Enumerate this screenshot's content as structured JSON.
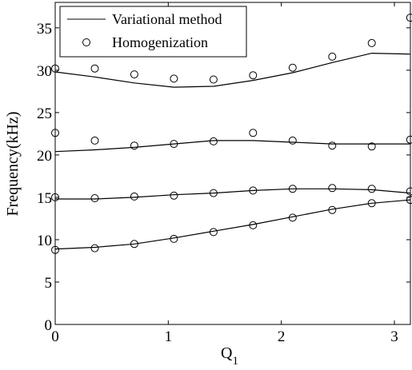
{
  "chart_data": {
    "type": "line",
    "xlabel": "Q",
    "xlabel_subscript": "1",
    "ylabel": "Frequency(kHz)",
    "xlim": [
      0,
      3.1416
    ],
    "ylim": [
      0,
      38
    ],
    "xticks": [
      0,
      1,
      2,
      3
    ],
    "yticks": [
      0,
      5,
      10,
      15,
      20,
      25,
      30,
      35
    ],
    "x_tick_labels": [
      "0",
      "1",
      "2",
      "3"
    ],
    "y_tick_labels": [
      "0",
      "5",
      "10",
      "15",
      "20",
      "25",
      "30",
      "35"
    ],
    "grid": false,
    "legend_position": "top-left",
    "legend": [
      "Variational method",
      "Homogenization"
    ],
    "series": [
      {
        "name": "Variational method",
        "style": "line",
        "curves": [
          {
            "x": [
              0,
              0.35,
              0.7,
              1.05,
              1.4,
              1.75,
              2.1,
              2.45,
              2.8,
              3.14
            ],
            "y": [
              8.9,
              9.1,
              9.5,
              10.2,
              11.0,
              11.8,
              12.7,
              13.6,
              14.3,
              14.7
            ]
          },
          {
            "x": [
              0,
              0.35,
              0.7,
              1.05,
              1.4,
              1.75,
              2.1,
              2.45,
              2.8,
              3.14
            ],
            "y": [
              14.8,
              14.8,
              15.0,
              15.3,
              15.5,
              15.8,
              16.0,
              16.0,
              15.9,
              15.5
            ]
          },
          {
            "x": [
              0,
              0.35,
              0.7,
              1.05,
              1.4,
              1.75,
              2.1,
              2.45,
              2.8,
              3.14
            ],
            "y": [
              20.4,
              20.6,
              20.9,
              21.3,
              21.7,
              21.7,
              21.5,
              21.3,
              21.3,
              21.3
            ]
          },
          {
            "x": [
              0,
              0.35,
              0.7,
              1.05,
              1.4,
              1.75,
              2.1,
              2.45,
              2.8,
              3.14
            ],
            "y": [
              29.8,
              29.2,
              28.5,
              28.0,
              28.1,
              28.8,
              29.7,
              30.9,
              32.0,
              31.9
            ]
          }
        ]
      },
      {
        "name": "Homogenization",
        "style": "marker-circle",
        "curves": [
          {
            "x": [
              0,
              0.35,
              0.7,
              1.05,
              1.4,
              1.75,
              2.1,
              2.45,
              2.8,
              3.14
            ],
            "y": [
              8.8,
              9.0,
              9.5,
              10.1,
              10.9,
              11.7,
              12.6,
              13.5,
              14.3,
              14.7
            ]
          },
          {
            "x": [
              0,
              0.35,
              0.7,
              1.05,
              1.4,
              1.75,
              2.1,
              2.45,
              2.8,
              3.14
            ],
            "y": [
              15.0,
              14.9,
              15.1,
              15.2,
              15.5,
              15.8,
              16.0,
              16.1,
              16.0,
              15.7
            ]
          },
          {
            "x": [
              0,
              0.35,
              0.7,
              1.05,
              1.4,
              1.75,
              2.1,
              2.45,
              2.8,
              3.14
            ],
            "y": [
              22.6,
              21.7,
              21.1,
              21.3,
              21.6,
              22.6,
              21.7,
              21.1,
              21.0,
              21.8
            ]
          },
          {
            "x": [
              0,
              0.35,
              0.7,
              1.05,
              1.4,
              1.75,
              2.1,
              2.45,
              2.8,
              3.14
            ],
            "y": [
              30.2,
              30.2,
              29.5,
              29.0,
              28.9,
              29.4,
              30.3,
              31.6,
              33.2,
              36.2
            ]
          }
        ]
      }
    ]
  }
}
